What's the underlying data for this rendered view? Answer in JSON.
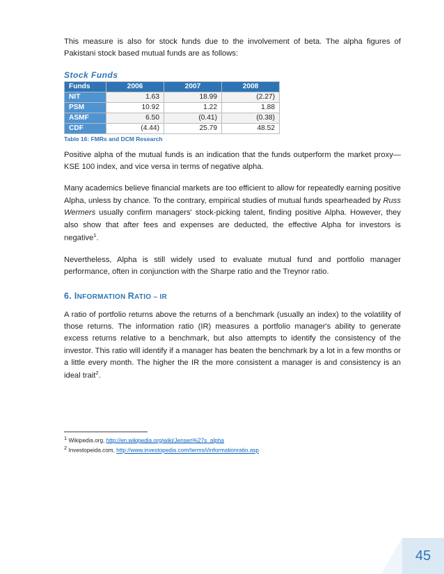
{
  "intro": {
    "p1": "This measure is also for stock funds due to the involvement of beta. The alpha figures of Pakistani stock based mutual funds are as follows:"
  },
  "table": {
    "title": "Stock Funds",
    "headers": [
      "Funds",
      "2006",
      "2007",
      "2008"
    ],
    "rows": [
      [
        "NIT",
        "1.63",
        "18.99",
        "(2.27)"
      ],
      [
        "PSM",
        "10.92",
        "1.22",
        "1.88"
      ],
      [
        "ASMF",
        "6.50",
        "(0.41)",
        "(0.38)"
      ],
      [
        "CDF",
        "(4.44)",
        "25.79",
        "48.52"
      ]
    ],
    "caption": "Table 16: FMRs and DCM Research"
  },
  "body": {
    "p2": "Positive alpha of the mutual funds is an indication that the funds outperform the market proxy—KSE 100 index, and vice versa in terms of negative alpha.",
    "p3a": "Many academics believe financial markets are too efficient to allow for repeatedly earning positive Alpha, unless by chance. To the contrary, empirical studies of mutual funds spearheaded by ",
    "p3_italic": "Russ Wermers",
    "p3b": " usually confirm managers' stock-picking talent, finding positive Alpha. However, they also show that after fees and expenses are deducted, the effective Alpha for investors is negative",
    "p3_sup": "1",
    "p3c": ".",
    "p4": "Nevertheless, Alpha is still widely used to evaluate mutual fund and portfolio manager performance, often in conjunction with the Sharpe ratio and the Treynor ratio."
  },
  "section6": {
    "num": "6.  ",
    "title_i": "I",
    "title_rest1": "NFORMATION ",
    "title_r": "R",
    "title_rest2": "ATIO – IR",
    "p1a": "A ratio of portfolio returns above the returns of a benchmark (usually an index) to the volatility of those returns. The information ratio (IR) measures a portfolio manager's ability to generate excess returns relative to a benchmark, but also attempts to identify the consistency of the investor. This ratio will identify if a manager has beaten the benchmark by a lot in a few months or a little every month. The higher the IR the more consistent a manager is and consistency is an ideal trait",
    "p1_sup": "2",
    "p1b": "."
  },
  "footnotes": {
    "f1_num": "1",
    "f1_src": " Wikipedia.org, ",
    "f1_link": "http://en.wikipedia.org/wiki/Jensen%27s_alpha",
    "f2_num": "2",
    "f2_src": " Investopeida.com, ",
    "f2_link": "http://www.investopedia.com/terms/i/informationratio.asp"
  },
  "page_number": "45"
}
